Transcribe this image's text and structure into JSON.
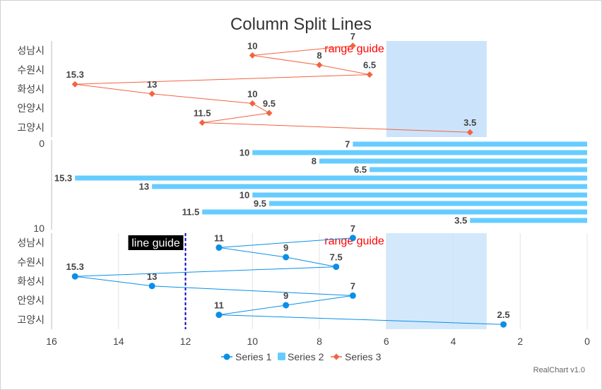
{
  "chart_data": {
    "type": "line",
    "title": "Column Split Lines",
    "credit": "RealChart v1.0",
    "x_axis": {
      "reversed": true,
      "range": [
        0,
        16
      ],
      "ticks": [
        "16",
        "14",
        "12",
        "10",
        "8",
        "6",
        "4",
        "2",
        "0"
      ]
    },
    "top_panel": {
      "categories": [
        "성남시",
        "수원시",
        "화성시",
        "안양시",
        "고양시"
      ],
      "series": "Series 3",
      "x": [
        7,
        10,
        8,
        6.5,
        15.3,
        13,
        10,
        9.5,
        11.5,
        3.5
      ],
      "labels": [
        "7",
        "10",
        "8",
        "6.5",
        "15.3",
        "13",
        "10",
        "9.5",
        "11.5",
        "3.5"
      ],
      "range_guide": {
        "from": 3,
        "to": 6,
        "label": "range guide"
      }
    },
    "middle_panel": {
      "series": "Series 2",
      "type": "bar",
      "axis_ticks": [
        "0",
        "10"
      ],
      "values": [
        7,
        10,
        8,
        6.5,
        15.3,
        13,
        10,
        9.5,
        11.5,
        3.5
      ],
      "labels": [
        "7",
        "10",
        "8",
        "6.5",
        "15.3",
        "13",
        "10",
        "9.5",
        "11.5",
        "3.5"
      ]
    },
    "bottom_panel": {
      "categories": [
        "성남시",
        "수원시",
        "화성시",
        "안양시",
        "고양시"
      ],
      "series": "Series 1",
      "x": [
        7,
        11,
        9,
        7.5,
        15.3,
        13,
        7,
        9,
        11,
        2.5
      ],
      "labels": [
        "7",
        "11",
        "9",
        "7.5",
        "15.3",
        "13",
        "7",
        "9",
        "11",
        "2.5"
      ],
      "range_guide": {
        "from": 3,
        "to": 6,
        "label": "range guide"
      },
      "line_guide": {
        "value": 12,
        "label": "line guide"
      }
    },
    "legend": [
      {
        "name": "Series 1",
        "marker": "circle",
        "color": "#0a8fe8"
      },
      {
        "name": "Series 2",
        "marker": "square",
        "color": "#66ccff"
      },
      {
        "name": "Series 3",
        "marker": "diamond",
        "color": "#f26341"
      }
    ],
    "colors": {
      "series1": "#0a8fe8",
      "series2": "#66ccff",
      "series3": "#f26341",
      "guide_band": "#cce4fb",
      "guide_line": "#0000cc"
    },
    "grid": true,
    "legend_position": "bottom"
  }
}
